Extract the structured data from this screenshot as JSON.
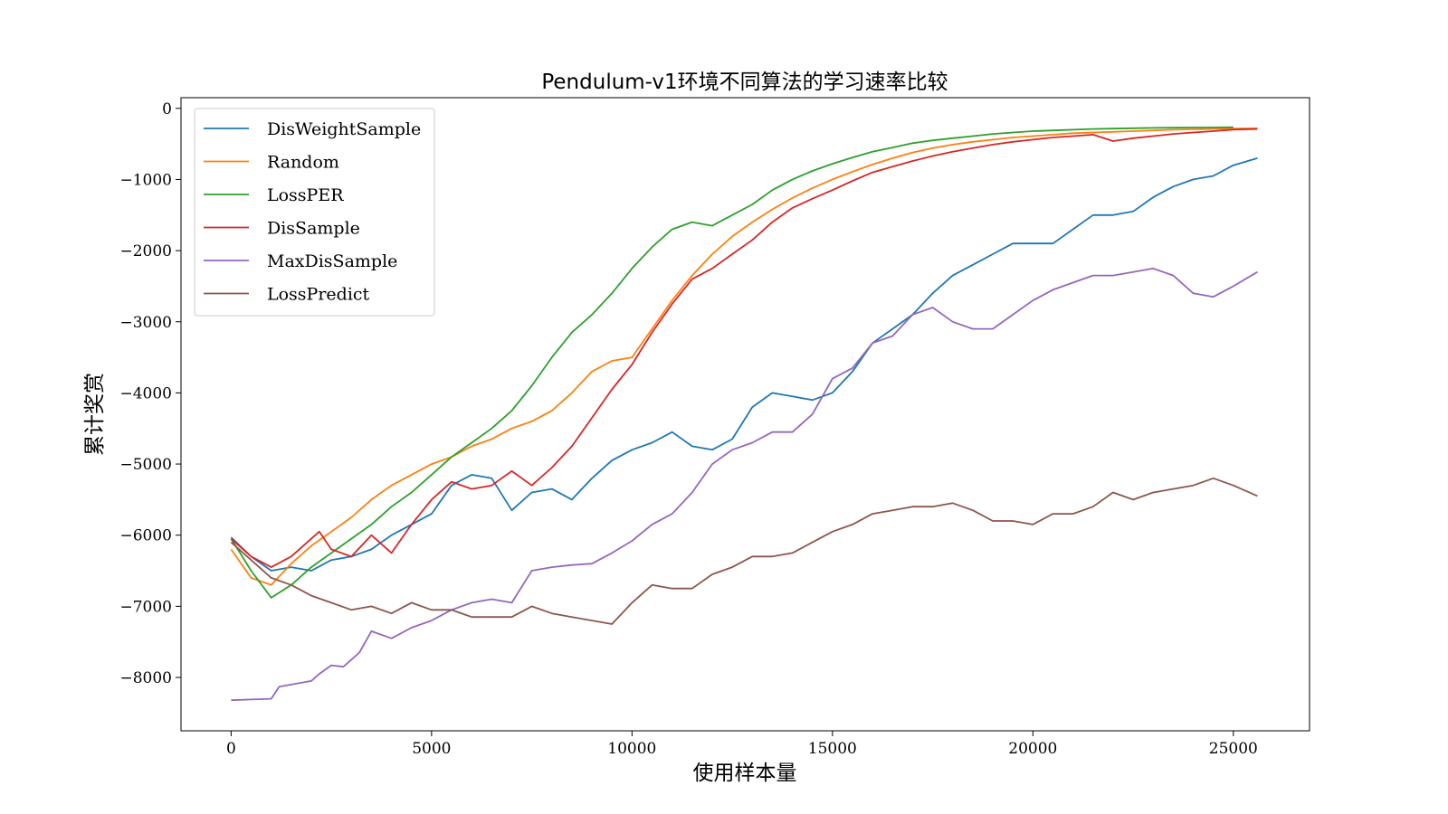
{
  "chart_data": {
    "type": "line",
    "title": "Pendulum-v1环境不同算法的学习速率比较",
    "xlabel": "使用样本量",
    "ylabel": "累计奖赏",
    "xlim": [
      -1250,
      26900
    ],
    "ylim": [
      -8750,
      150
    ],
    "xticks": [
      0,
      5000,
      10000,
      15000,
      20000,
      25000
    ],
    "yticks": [
      0,
      -1000,
      -2000,
      -3000,
      -4000,
      -5000,
      -6000,
      -7000,
      -8000
    ],
    "xtick_labels": [
      "0",
      "5000",
      "10000",
      "15000",
      "20000",
      "25000"
    ],
    "ytick_labels": [
      "0",
      "−1000",
      "−2000",
      "−3000",
      "−4000",
      "−5000",
      "−6000",
      "−7000",
      "−8000"
    ],
    "grid": false,
    "legend_position": "top-left",
    "series": [
      {
        "name": "DisWeightSample",
        "color": "#1f77b4",
        "x": [
          0,
          500,
          1000,
          1500,
          2000,
          2500,
          3000,
          3500,
          4000,
          4500,
          5000,
          5500,
          6000,
          6500,
          7000,
          7500,
          8000,
          8500,
          9000,
          9500,
          10000,
          10500,
          11000,
          11500,
          12000,
          12500,
          13000,
          13500,
          14000,
          14500,
          15000,
          15500,
          16000,
          16500,
          17000,
          17500,
          18000,
          18500,
          19000,
          19500,
          20000,
          20500,
          21000,
          21500,
          22000,
          22500,
          23000,
          23500,
          24000,
          24500,
          25000,
          25600
        ],
        "y": [
          -6030,
          -6300,
          -6500,
          -6450,
          -6500,
          -6350,
          -6300,
          -6200,
          -6000,
          -5850,
          -5700,
          -5300,
          -5150,
          -5200,
          -5650,
          -5400,
          -5350,
          -5500,
          -5200,
          -4950,
          -4800,
          -4700,
          -4550,
          -4750,
          -4800,
          -4650,
          -4200,
          -4000,
          -4050,
          -4100,
          -4000,
          -3700,
          -3300,
          -3100,
          -2900,
          -2600,
          -2350,
          -2200,
          -2050,
          -1900,
          -1900,
          -1900,
          -1700,
          -1500,
          -1500,
          -1450,
          -1250,
          -1100,
          -1000,
          -950,
          -800,
          -700
        ]
      },
      {
        "name": "Random",
        "color": "#ff7f0e",
        "x": [
          0,
          500,
          1000,
          1500,
          2000,
          2500,
          3000,
          3500,
          4000,
          4500,
          5000,
          5500,
          6000,
          6500,
          7000,
          7500,
          8000,
          8500,
          9000,
          9500,
          10000,
          10500,
          11000,
          11500,
          12000,
          12500,
          13000,
          13500,
          14000,
          14500,
          15000,
          15500,
          16000,
          16500,
          17000,
          17500,
          18000,
          18500,
          19000,
          19500,
          20000,
          20500,
          21000,
          21500,
          22000,
          22500,
          23000,
          23500,
          24000,
          24500,
          25000,
          25600
        ],
        "y": [
          -6200,
          -6600,
          -6700,
          -6400,
          -6150,
          -5950,
          -5750,
          -5500,
          -5300,
          -5150,
          -5000,
          -4900,
          -4750,
          -4650,
          -4500,
          -4400,
          -4250,
          -4000,
          -3700,
          -3550,
          -3500,
          -3100,
          -2700,
          -2350,
          -2050,
          -1800,
          -1600,
          -1420,
          -1260,
          -1120,
          -1000,
          -890,
          -790,
          -700,
          -620,
          -560,
          -510,
          -470,
          -440,
          -410,
          -390,
          -370,
          -350,
          -340,
          -330,
          -320,
          -310,
          -300,
          -295,
          -290,
          -285,
          -280
        ]
      },
      {
        "name": "LossPER",
        "color": "#2ca02c",
        "x": [
          0,
          500,
          1000,
          1500,
          2000,
          2500,
          3000,
          3500,
          4000,
          4500,
          5000,
          5500,
          6000,
          6500,
          7000,
          7500,
          8000,
          8500,
          9000,
          9500,
          10000,
          10500,
          11000,
          11500,
          12000,
          12500,
          13000,
          13500,
          14000,
          14500,
          15000,
          15500,
          16000,
          16500,
          17000,
          17500,
          18000,
          18500,
          19000,
          19500,
          20000,
          20500,
          21000,
          21500,
          22000,
          22500,
          23000,
          23500,
          24000,
          24500,
          25000
        ],
        "y": [
          -6050,
          -6500,
          -6880,
          -6700,
          -6450,
          -6250,
          -6050,
          -5850,
          -5600,
          -5400,
          -5150,
          -4900,
          -4700,
          -4500,
          -4250,
          -3900,
          -3500,
          -3150,
          -2900,
          -2600,
          -2250,
          -1950,
          -1700,
          -1600,
          -1650,
          -1500,
          -1350,
          -1150,
          -1000,
          -880,
          -780,
          -690,
          -610,
          -550,
          -490,
          -450,
          -420,
          -390,
          -360,
          -340,
          -320,
          -310,
          -300,
          -290,
          -285,
          -280,
          -275,
          -272,
          -270,
          -268,
          -265
        ]
      },
      {
        "name": "DisSample",
        "color": "#d62728",
        "x": [
          0,
          500,
          1000,
          1500,
          2000,
          2200,
          2500,
          3000,
          3500,
          4000,
          4500,
          5000,
          5500,
          6000,
          6500,
          7000,
          7500,
          8000,
          8500,
          9000,
          9500,
          10000,
          10500,
          11000,
          11500,
          12000,
          12500,
          13000,
          13500,
          14000,
          14500,
          15000,
          15500,
          16000,
          16500,
          17000,
          17500,
          18000,
          18500,
          19000,
          19500,
          20000,
          20500,
          21000,
          21500,
          22000,
          22500,
          23000,
          23500,
          24000,
          24500,
          25000,
          25600
        ],
        "y": [
          -6050,
          -6300,
          -6450,
          -6300,
          -6050,
          -5950,
          -6200,
          -6300,
          -6000,
          -6250,
          -5850,
          -5500,
          -5250,
          -5350,
          -5300,
          -5100,
          -5300,
          -5050,
          -4750,
          -4350,
          -3950,
          -3600,
          -3150,
          -2750,
          -2400,
          -2250,
          -2050,
          -1850,
          -1600,
          -1400,
          -1270,
          -1150,
          -1020,
          -900,
          -820,
          -740,
          -670,
          -610,
          -560,
          -510,
          -470,
          -440,
          -410,
          -390,
          -370,
          -460,
          -420,
          -390,
          -360,
          -340,
          -320,
          -300,
          -290
        ]
      },
      {
        "name": "MaxDisSample",
        "color": "#9467bd",
        "x": [
          0,
          500,
          1000,
          1200,
          1500,
          2000,
          2200,
          2500,
          2800,
          3000,
          3200,
          3500,
          4000,
          4500,
          5000,
          5500,
          6000,
          6500,
          7000,
          7500,
          8000,
          8500,
          9000,
          9500,
          10000,
          10500,
          11000,
          11500,
          12000,
          12500,
          13000,
          13500,
          14000,
          14500,
          15000,
          15500,
          16000,
          16500,
          17000,
          17500,
          18000,
          18500,
          19000,
          19500,
          20000,
          20500,
          21000,
          21500,
          22000,
          22500,
          23000,
          23500,
          24000,
          24500,
          25000,
          25600
        ],
        "y": [
          -8320,
          -8310,
          -8300,
          -8130,
          -8100,
          -8050,
          -7950,
          -7830,
          -7850,
          -7750,
          -7650,
          -7350,
          -7450,
          -7300,
          -7200,
          -7050,
          -6950,
          -6900,
          -6950,
          -6500,
          -6450,
          -6420,
          -6400,
          -6250,
          -6080,
          -5850,
          -5700,
          -5400,
          -5000,
          -4800,
          -4700,
          -4550,
          -4550,
          -4300,
          -3800,
          -3650,
          -3300,
          -3200,
          -2900,
          -2800,
          -3000,
          -3100,
          -3100,
          -2900,
          -2700,
          -2550,
          -2450,
          -2350,
          -2350,
          -2300,
          -2250,
          -2350,
          -2600,
          -2650,
          -2500,
          -2300
        ]
      },
      {
        "name": "LossPredict",
        "color": "#8c564b",
        "x": [
          0,
          500,
          1000,
          1500,
          2000,
          2500,
          3000,
          3500,
          4000,
          4500,
          5000,
          5500,
          6000,
          6500,
          7000,
          7500,
          8000,
          8500,
          9000,
          9500,
          10000,
          10500,
          11000,
          11500,
          12000,
          12500,
          13000,
          13500,
          14000,
          14500,
          15000,
          15500,
          16000,
          16500,
          17000,
          17500,
          18000,
          18500,
          19000,
          19500,
          20000,
          20500,
          21000,
          21500,
          22000,
          22500,
          23000,
          23500,
          24000,
          24500,
          25000,
          25600
        ],
        "y": [
          -6100,
          -6350,
          -6600,
          -6700,
          -6850,
          -6950,
          -7050,
          -7000,
          -7100,
          -6950,
          -7050,
          -7050,
          -7150,
          -7150,
          -7150,
          -7000,
          -7100,
          -7150,
          -7200,
          -7250,
          -6950,
          -6700,
          -6750,
          -6750,
          -6550,
          -6450,
          -6300,
          -6300,
          -6250,
          -6100,
          -5950,
          -5850,
          -5700,
          -5650,
          -5600,
          -5600,
          -5550,
          -5650,
          -5800,
          -5800,
          -5850,
          -5700,
          -5700,
          -5600,
          -5400,
          -5500,
          -5400,
          -5350,
          -5300,
          -5200,
          -5300,
          -5450
        ]
      }
    ]
  }
}
